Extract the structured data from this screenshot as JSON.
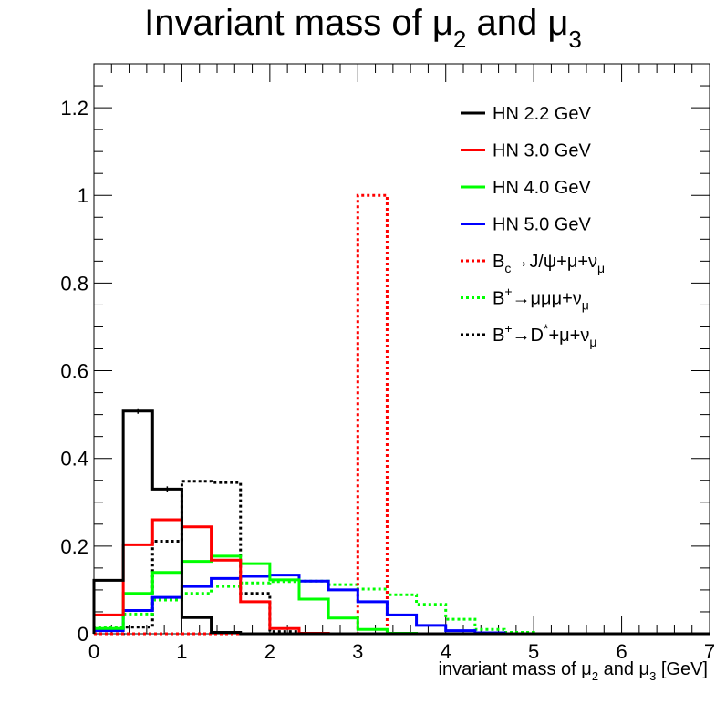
{
  "chart_data": {
    "type": "histogram",
    "title": "Invariant mass of μ₂ and μ₃",
    "title_parts": {
      "prefix": "Invariant mass of μ",
      "sub1": "2",
      "mid": " and μ",
      "sub2": "3"
    },
    "xlabel": "invariant mass of μ₂ and μ₃ [GeV]",
    "xlabel_parts": {
      "prefix": "invariant mass of μ",
      "sub1": "2",
      "mid": " and μ",
      "sub2": "3",
      "suffix": " [GeV]"
    },
    "ylabel": "",
    "xlim": [
      0,
      7
    ],
    "ylim": [
      0,
      1.3
    ],
    "x_ticks": [
      "0",
      "1",
      "2",
      "3",
      "4",
      "5",
      "6",
      "7"
    ],
    "y_ticks": [
      "0",
      "0.2",
      "0.4",
      "0.6",
      "0.8",
      "1",
      "1.2"
    ],
    "bin_edges": [
      0,
      0.33333,
      0.66667,
      1.0,
      1.33333,
      1.66667,
      2.0,
      2.33333,
      2.66667,
      3.0,
      3.33333,
      3.66667,
      4.0,
      4.33333,
      4.66667,
      5.0,
      5.33333,
      5.66667,
      6.0,
      6.33333,
      6.66667,
      7.0
    ],
    "grid": false,
    "legend_position": "top-right",
    "series": [
      {
        "name": "HN 2.2 GeV",
        "color": "#000000",
        "style": "solid",
        "values": [
          0.122,
          0.508,
          0.33,
          0.037,
          0.003,
          0,
          0,
          0,
          0,
          0,
          0,
          0,
          0,
          0,
          0,
          0,
          0,
          0,
          0,
          0,
          0
        ]
      },
      {
        "name": "HN 3.0 GeV",
        "color": "#ff0000",
        "style": "solid",
        "values": [
          0.043,
          0.203,
          0.26,
          0.244,
          0.168,
          0.073,
          0.012,
          0.001,
          0,
          0,
          0,
          0,
          0,
          0,
          0,
          0,
          0,
          0,
          0,
          0,
          0
        ]
      },
      {
        "name": "HN 4.0 GeV",
        "color": "#00ff00",
        "style": "solid",
        "values": [
          0.012,
          0.092,
          0.14,
          0.165,
          0.177,
          0.16,
          0.123,
          0.079,
          0.036,
          0.01,
          0.001,
          0,
          0,
          0,
          0,
          0,
          0,
          0,
          0,
          0,
          0
        ]
      },
      {
        "name": "HN 5.0 GeV",
        "color": "#0000ff",
        "style": "solid",
        "values": [
          0.007,
          0.053,
          0.083,
          0.108,
          0.126,
          0.131,
          0.134,
          0.12,
          0.1,
          0.073,
          0.043,
          0.019,
          0.007,
          0.002,
          0,
          0,
          0,
          0,
          0,
          0,
          0
        ]
      },
      {
        "name": "B_c→J/ψ+μ+ν_μ",
        "color": "#ff0000",
        "style": "dotted",
        "label_parts": [
          {
            "t": "B"
          },
          {
            "t": "c",
            "sub": true
          },
          {
            "t": "→J/ψ+μ+ν"
          },
          {
            "t": "μ",
            "sub": true
          }
        ],
        "values": [
          0,
          0,
          0,
          0,
          0,
          0,
          0,
          0,
          0,
          1.0,
          0,
          0,
          0,
          0,
          0,
          0,
          0,
          0,
          0,
          0,
          0
        ]
      },
      {
        "name": "B⁺→μμμ+ν_μ",
        "color": "#00ff00",
        "style": "dotted",
        "label_parts": [
          {
            "t": "B"
          },
          {
            "t": "+",
            "sup": true
          },
          {
            "t": "→μμμ+ν"
          },
          {
            "t": "μ",
            "sub": true
          }
        ],
        "values": [
          0.015,
          0.045,
          0.077,
          0.092,
          0.108,
          0.116,
          0.119,
          0.12,
          0.112,
          0.102,
          0.089,
          0.067,
          0.033,
          0.01,
          0.003,
          0,
          0,
          0,
          0,
          0,
          0
        ]
      },
      {
        "name": "B⁺→D*+μ+ν_μ",
        "color": "#000000",
        "style": "dotted",
        "label_parts": [
          {
            "t": "B"
          },
          {
            "t": "+",
            "sup": true
          },
          {
            "t": "→D"
          },
          {
            "t": "*",
            "sup": true
          },
          {
            "t": "+μ+ν"
          },
          {
            "t": "μ",
            "sub": true
          }
        ],
        "values": [
          0,
          0.015,
          0.211,
          0.348,
          0.345,
          0.092,
          0.005,
          0,
          0,
          0,
          0,
          0,
          0,
          0,
          0,
          0,
          0,
          0,
          0,
          0,
          0
        ]
      }
    ]
  }
}
